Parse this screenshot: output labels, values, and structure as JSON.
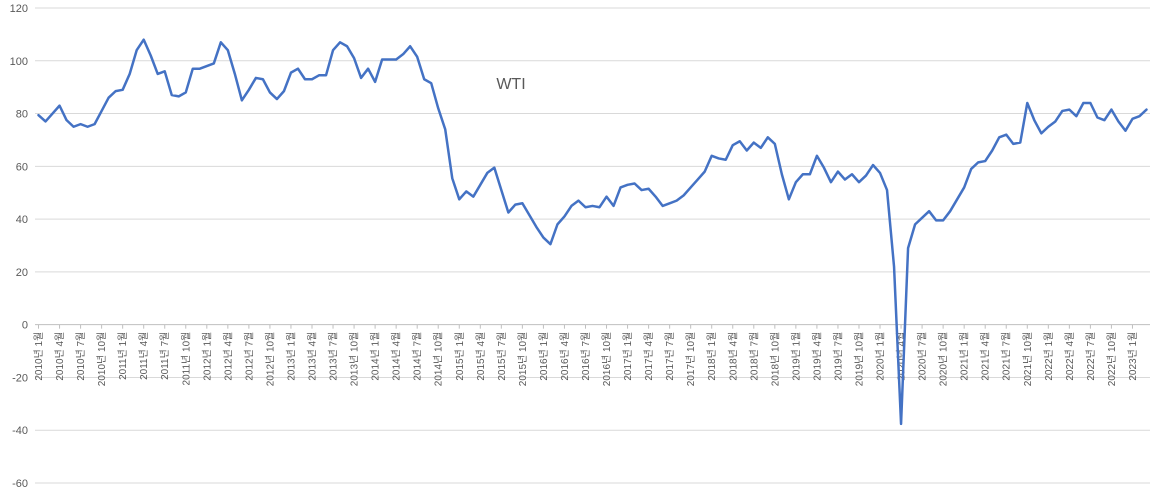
{
  "chart_data": {
    "type": "line",
    "title": "WTI",
    "series": [
      {
        "name": "WTI",
        "color": "#4472c4",
        "values": [
          79.4,
          77,
          80,
          83,
          77.5,
          75,
          76,
          75,
          76,
          81,
          86,
          88.5,
          89,
          95,
          104,
          108,
          102,
          95,
          96,
          87,
          86.5,
          88,
          97,
          97,
          98,
          99,
          107,
          104,
          95,
          85,
          89,
          93.5,
          93,
          88,
          85.5,
          88.5,
          95.5,
          97,
          93,
          93,
          94.5,
          94.5,
          104,
          107,
          105.5,
          101,
          93.5,
          97,
          92,
          100.5,
          100.5,
          100.5,
          102.5,
          105.5,
          101.5,
          93,
          91.5,
          82,
          74,
          55.5,
          47.5,
          50.5,
          48.5,
          53,
          57.5,
          59.5,
          51,
          42.5,
          45.5,
          46,
          41.5,
          37,
          33,
          30.5,
          38,
          41,
          45,
          47,
          44.5,
          45,
          44.5,
          48.5,
          45,
          52,
          53,
          53.5,
          51,
          51.5,
          48.5,
          45,
          46,
          47,
          49,
          52,
          55,
          58,
          64,
          63,
          62.5,
          68,
          69.5,
          66,
          69,
          67,
          71,
          68.5,
          57,
          47.5,
          54,
          57,
          57,
          64,
          59.5,
          54,
          58,
          55,
          57,
          54,
          56.5,
          60.5,
          57.5,
          51,
          22,
          -37.6,
          29,
          38,
          40.5,
          43,
          39.5,
          39.5,
          43,
          47.5,
          52,
          59,
          61.5,
          62,
          66,
          71,
          72,
          68.5,
          69,
          84,
          77.5,
          72.5,
          75,
          77,
          81,
          81.5,
          79,
          84,
          84,
          78.5,
          77.5,
          81.5,
          77,
          73.5,
          78,
          79,
          81.5
        ]
      }
    ],
    "x_start": "2010-01",
    "x_labels": [
      "2010년 1월",
      "2010년 4월",
      "2010년 7월",
      "2010년 10월",
      "2011년 1월",
      "2011년 4월",
      "2011년 7월",
      "2011년 10월",
      "2012년 1월",
      "2012년 4월",
      "2012년 7월",
      "2012년 10월",
      "2013년 1월",
      "2013년 4월",
      "2013년 7월",
      "2013년 10월",
      "2014년 1월",
      "2014년 4월",
      "2014년 7월",
      "2014년 10월",
      "2015년 1월",
      "2015년 4월",
      "2015년 7월",
      "2015년 10월",
      "2016년 1월",
      "2016년 4월",
      "2016년 7월",
      "2016년 10월",
      "2017년 1월",
      "2017년 4월",
      "2017년 7월",
      "2017년 10월",
      "2018년 1월",
      "2018년 4월",
      "2018년 7월",
      "2018년 10월",
      "2019년 1월",
      "2019년 4월",
      "2019년 7월",
      "2019년 10월",
      "2020년 1월",
      "2020년 4월",
      "2020년 7월",
      "2020년 10월",
      "2021년 1월",
      "2021년 4월",
      "2021년 7월",
      "2021년 10월",
      "2022년 1월",
      "2022년 4월",
      "2022년 7월",
      "2022년 10월",
      "2023년 1월"
    ],
    "ylim": [
      -60,
      120
    ],
    "y_ticks": [
      -60,
      -40,
      -20,
      0,
      20,
      40,
      60,
      80,
      100,
      120
    ],
    "grid": true,
    "xlabel": "",
    "ylabel": ""
  }
}
